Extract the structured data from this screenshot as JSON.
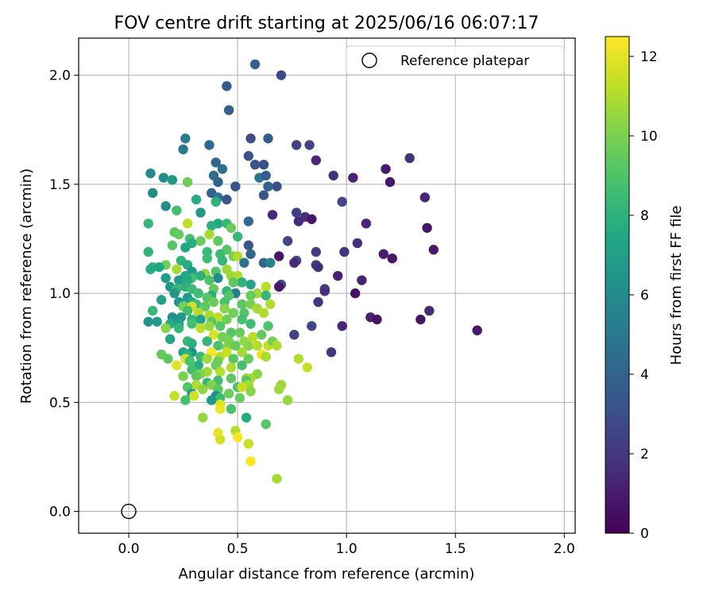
{
  "chart_data": {
    "type": "scatter",
    "title": "FOV centre drift starting at 2025/06/16 06:07:17",
    "xlabel": "Angular distance from reference (arcmin)",
    "ylabel": "Rotation from reference (arcmin)",
    "xlim": [
      -0.23,
      2.05
    ],
    "ylim": [
      -0.1,
      2.17
    ],
    "xticks": [
      "0.0",
      "0.5",
      "1.0",
      "1.5",
      "2.0"
    ],
    "yticks": [
      "0.0",
      "0.5",
      "1.0",
      "1.5",
      "2.0"
    ],
    "grid": true,
    "legend": {
      "location": "upper right",
      "entries": [
        "Reference platepar"
      ]
    },
    "colorbar": {
      "label": "Hours from first FF file",
      "colormap": "viridis",
      "range": [
        0,
        12.5
      ],
      "ticks": [
        "0",
        "2",
        "4",
        "6",
        "8",
        "10",
        "12"
      ]
    },
    "reference_point": {
      "x": 0.0,
      "y": 0.0,
      "label": "Reference platepar",
      "marker": "open-circle",
      "edge_color": "#000000"
    },
    "points": [
      [
        0.58,
        2.05,
        3.7
      ],
      [
        0.7,
        2.0,
        2.8
      ],
      [
        0.45,
        1.95,
        3.5
      ],
      [
        0.46,
        1.84,
        3.8
      ],
      [
        0.56,
        1.71,
        2.9
      ],
      [
        0.64,
        1.71,
        3.6
      ],
      [
        0.26,
        1.71,
        5.2
      ],
      [
        0.37,
        1.68,
        4.2
      ],
      [
        0.77,
        1.68,
        2.4
      ],
      [
        0.83,
        1.68,
        2.5
      ],
      [
        0.25,
        1.66,
        5.0
      ],
      [
        0.55,
        1.63,
        3.2
      ],
      [
        0.86,
        1.61,
        1.5
      ],
      [
        1.29,
        1.62,
        1.8
      ],
      [
        0.4,
        1.6,
        4.1
      ],
      [
        0.58,
        1.59,
        3.3
      ],
      [
        0.62,
        1.59,
        3.0
      ],
      [
        0.43,
        1.57,
        4.5
      ],
      [
        1.18,
        1.57,
        1.0
      ],
      [
        0.1,
        1.55,
        5.8
      ],
      [
        0.39,
        1.54,
        4.4
      ],
      [
        0.6,
        1.53,
        4.9
      ],
      [
        0.63,
        1.54,
        3.6
      ],
      [
        0.94,
        1.54,
        1.7
      ],
      [
        1.03,
        1.53,
        1.2
      ],
      [
        0.16,
        1.53,
        6.1
      ],
      [
        0.2,
        1.52,
        6.8
      ],
      [
        0.27,
        1.51,
        9.7
      ],
      [
        0.41,
        1.51,
        4.0
      ],
      [
        0.49,
        1.49,
        3.3
      ],
      [
        0.68,
        1.49,
        3.0
      ],
      [
        1.2,
        1.51,
        0.8
      ],
      [
        0.64,
        1.49,
        3.9
      ],
      [
        0.11,
        1.46,
        6.0
      ],
      [
        0.38,
        1.46,
        3.9
      ],
      [
        0.62,
        1.45,
        3.4
      ],
      [
        0.41,
        1.44,
        4.9
      ],
      [
        0.45,
        1.43,
        3.3
      ],
      [
        0.31,
        1.43,
        7.6
      ],
      [
        0.4,
        1.42,
        7.9
      ],
      [
        0.98,
        1.42,
        2.6
      ],
      [
        1.36,
        1.44,
        1.3
      ],
      [
        0.17,
        1.4,
        6.1
      ],
      [
        0.22,
        1.38,
        8.7
      ],
      [
        0.33,
        1.37,
        6.6
      ],
      [
        0.66,
        1.36,
        1.5
      ],
      [
        0.77,
        1.37,
        2.4
      ],
      [
        0.81,
        1.35,
        1.7
      ],
      [
        0.84,
        1.34,
        0.8
      ],
      [
        0.55,
        1.33,
        4.3
      ],
      [
        0.09,
        1.32,
        8.2
      ],
      [
        0.41,
        1.32,
        7.5
      ],
      [
        0.45,
        1.32,
        8.3
      ],
      [
        0.38,
        1.31,
        7.9
      ],
      [
        0.78,
        1.33,
        1.5
      ],
      [
        1.09,
        1.32,
        1.3
      ],
      [
        0.27,
        1.32,
        11.3
      ],
      [
        0.47,
        1.3,
        9.6
      ],
      [
        0.37,
        1.27,
        10.8
      ],
      [
        0.21,
        1.28,
        9.3
      ],
      [
        0.23,
        1.27,
        9.5
      ],
      [
        1.37,
        1.3,
        0.7
      ],
      [
        0.5,
        1.26,
        8.4
      ],
      [
        0.28,
        1.25,
        8.9
      ],
      [
        0.33,
        1.24,
        9.6
      ],
      [
        0.41,
        1.24,
        9.4
      ],
      [
        0.73,
        1.24,
        2.6
      ],
      [
        0.29,
        1.23,
        7.8
      ],
      [
        0.55,
        1.22,
        3.4
      ],
      [
        1.05,
        1.23,
        1.8
      ],
      [
        0.2,
        1.22,
        9.2
      ],
      [
        0.26,
        1.21,
        7.5
      ],
      [
        0.45,
        1.2,
        9.1
      ],
      [
        0.86,
        1.19,
        2.2
      ],
      [
        0.99,
        1.19,
        1.9
      ],
      [
        0.09,
        1.19,
        8.1
      ],
      [
        0.36,
        1.19,
        8.4
      ],
      [
        0.42,
        1.18,
        8.6
      ],
      [
        0.56,
        1.18,
        4.0
      ],
      [
        0.48,
        1.17,
        9.9
      ],
      [
        0.5,
        1.17,
        11.0
      ],
      [
        0.36,
        1.16,
        8.6
      ],
      [
        0.43,
        1.15,
        8.2
      ],
      [
        0.69,
        1.17,
        0.7
      ],
      [
        1.17,
        1.18,
        1.0
      ],
      [
        1.21,
        1.16,
        0.8
      ],
      [
        1.4,
        1.2,
        0.9
      ],
      [
        0.24,
        1.15,
        8.1
      ],
      [
        0.53,
        1.14,
        4.6
      ],
      [
        0.62,
        1.14,
        4.0
      ],
      [
        0.65,
        1.14,
        5.6
      ],
      [
        0.77,
        1.15,
        2.8
      ],
      [
        0.76,
        1.14,
        1.5
      ],
      [
        0.27,
        1.13,
        7.6
      ],
      [
        0.86,
        1.13,
        2.0
      ],
      [
        0.87,
        1.12,
        1.6
      ],
      [
        0.17,
        1.13,
        9.8
      ],
      [
        0.45,
        1.11,
        10.6
      ],
      [
        0.4,
        1.1,
        9.1
      ],
      [
        0.29,
        1.1,
        6.7
      ],
      [
        0.22,
        1.11,
        10.8
      ],
      [
        0.11,
        1.12,
        8.2
      ],
      [
        0.14,
        1.12,
        7.4
      ],
      [
        0.1,
        1.11,
        7.6
      ],
      [
        0.35,
        1.09,
        10.5
      ],
      [
        0.47,
        1.08,
        10.6
      ],
      [
        0.5,
        1.08,
        11.0
      ],
      [
        0.29,
        1.07,
        8.8
      ],
      [
        0.33,
        1.08,
        8.0
      ],
      [
        0.41,
        1.07,
        5.8
      ],
      [
        0.26,
        1.08,
        7.5
      ],
      [
        0.96,
        1.08,
        1.1
      ],
      [
        1.07,
        1.06,
        1.2
      ],
      [
        0.17,
        1.07,
        6.9
      ],
      [
        0.23,
        1.06,
        6.8
      ],
      [
        0.27,
        1.06,
        7.6
      ],
      [
        0.37,
        1.06,
        9.0
      ],
      [
        0.52,
        1.05,
        8.0
      ],
      [
        0.48,
        1.05,
        9.4
      ],
      [
        0.7,
        1.04,
        2.9
      ],
      [
        0.56,
        1.04,
        7.2
      ],
      [
        0.63,
        1.03,
        11.1
      ],
      [
        0.26,
        1.03,
        7.9
      ],
      [
        0.19,
        1.03,
        6.7
      ],
      [
        0.22,
        1.02,
        8.2
      ],
      [
        0.29,
        1.02,
        8.5
      ],
      [
        0.39,
        1.02,
        9.5
      ],
      [
        0.45,
        1.01,
        8.1
      ],
      [
        0.69,
        1.03,
        0.8
      ],
      [
        0.9,
        1.02,
        2.4
      ],
      [
        0.9,
        1.01,
        1.7
      ],
      [
        0.21,
        1.0,
        6.6
      ],
      [
        0.59,
        1.0,
        10.7
      ],
      [
        0.49,
        1.0,
        5.3
      ],
      [
        0.32,
        1.0,
        8.6
      ],
      [
        0.38,
        0.99,
        7.8
      ],
      [
        0.46,
        0.99,
        9.1
      ],
      [
        0.36,
        0.98,
        9.2
      ],
      [
        0.27,
        0.98,
        6.8
      ],
      [
        0.56,
        0.99,
        9.6
      ],
      [
        0.63,
        0.99,
        8.3
      ],
      [
        1.04,
        1.0,
        0.6
      ],
      [
        0.15,
        0.97,
        7.1
      ],
      [
        0.23,
        0.96,
        6.4
      ],
      [
        0.29,
        0.96,
        7.6
      ],
      [
        0.31,
        0.95,
        8.5
      ],
      [
        0.39,
        0.96,
        9.7
      ],
      [
        0.44,
        0.96,
        8.9
      ],
      [
        0.52,
        0.95,
        9.3
      ],
      [
        0.56,
        0.95,
        10.0
      ],
      [
        0.65,
        0.95,
        11.0
      ],
      [
        0.87,
        0.96,
        1.9
      ],
      [
        0.25,
        0.94,
        9.9
      ],
      [
        0.29,
        0.94,
        11.6
      ],
      [
        0.35,
        0.94,
        9.4
      ],
      [
        0.44,
        0.93,
        10.3
      ],
      [
        0.59,
        0.93,
        10.8
      ],
      [
        0.11,
        0.92,
        8.4
      ],
      [
        0.27,
        0.92,
        8.7
      ],
      [
        0.32,
        0.91,
        11.1
      ],
      [
        0.37,
        0.9,
        10.9
      ],
      [
        0.41,
        0.89,
        11.2
      ],
      [
        0.48,
        0.91,
        9.8
      ],
      [
        0.53,
        0.91,
        9.1
      ],
      [
        0.62,
        0.91,
        11.0
      ],
      [
        0.2,
        0.89,
        6.2
      ],
      [
        0.24,
        0.89,
        6.8
      ],
      [
        0.29,
        0.88,
        8.1
      ],
      [
        0.33,
        0.88,
        7.3
      ],
      [
        0.38,
        0.87,
        9.3
      ],
      [
        0.45,
        0.88,
        9.8
      ],
      [
        0.52,
        0.88,
        8.8
      ],
      [
        1.38,
        0.92,
        1.6
      ],
      [
        0.09,
        0.87,
        6.3
      ],
      [
        0.13,
        0.87,
        6.8
      ],
      [
        0.19,
        0.86,
        7.7
      ],
      [
        0.23,
        0.86,
        7.3
      ],
      [
        0.29,
        0.86,
        8.7
      ],
      [
        0.37,
        0.85,
        10.5
      ],
      [
        0.42,
        0.85,
        9.1
      ],
      [
        0.56,
        0.86,
        8.6
      ],
      [
        0.64,
        0.85,
        9.0
      ],
      [
        0.84,
        0.85,
        2.6
      ],
      [
        0.98,
        0.85,
        1.3
      ],
      [
        0.17,
        0.84,
        10.2
      ],
      [
        0.23,
        0.84,
        8.2
      ],
      [
        0.33,
        0.84,
        11.2
      ],
      [
        0.47,
        0.82,
        9.2
      ],
      [
        0.51,
        0.82,
        9.6
      ],
      [
        0.39,
        0.81,
        11.8
      ],
      [
        0.43,
        0.8,
        9.9
      ],
      [
        0.57,
        0.8,
        11.2
      ],
      [
        0.61,
        0.81,
        9.5
      ],
      [
        0.76,
        0.81,
        2.4
      ],
      [
        1.11,
        0.89,
        1.1
      ],
      [
        1.14,
        0.88,
        0.7
      ],
      [
        1.34,
        0.88,
        0.7
      ],
      [
        0.19,
        0.79,
        7.3
      ],
      [
        0.27,
        0.78,
        8.3
      ],
      [
        0.36,
        0.78,
        8.2
      ],
      [
        0.46,
        0.78,
        10.0
      ],
      [
        0.53,
        0.78,
        10.5
      ],
      [
        0.29,
        0.77,
        7.9
      ],
      [
        0.41,
        0.76,
        8.9
      ],
      [
        0.49,
        0.76,
        9.5
      ],
      [
        0.55,
        0.76,
        10.3
      ],
      [
        0.59,
        0.76,
        11.1
      ],
      [
        0.64,
        0.76,
        11.3
      ],
      [
        0.66,
        0.78,
        9.9
      ],
      [
        0.68,
        0.76,
        11.0
      ],
      [
        0.45,
        0.75,
        10.1
      ],
      [
        0.25,
        0.73,
        7.4
      ],
      [
        0.29,
        0.73,
        6.3
      ],
      [
        0.38,
        0.73,
        12.4
      ],
      [
        0.45,
        0.73,
        11.5
      ],
      [
        0.52,
        0.73,
        10.8
      ],
      [
        0.61,
        0.72,
        12.2
      ],
      [
        0.15,
        0.72,
        9.5
      ],
      [
        0.27,
        0.72,
        7.8
      ],
      [
        0.33,
        0.71,
        8.5
      ],
      [
        0.42,
        0.71,
        11.2
      ],
      [
        0.63,
        0.71,
        10.9
      ],
      [
        0.78,
        0.7,
        11.0
      ],
      [
        0.93,
        0.73,
        1.9
      ],
      [
        1.6,
        0.83,
        0.8
      ],
      [
        0.18,
        0.7,
        9.3
      ],
      [
        0.26,
        0.7,
        11.7
      ],
      [
        0.36,
        0.7,
        10.6
      ],
      [
        0.48,
        0.7,
        9.2
      ],
      [
        0.55,
        0.7,
        9.6
      ],
      [
        0.28,
        0.69,
        8.9
      ],
      [
        0.41,
        0.69,
        9.7
      ],
      [
        0.22,
        0.67,
        11.9
      ],
      [
        0.32,
        0.67,
        7.8
      ],
      [
        0.4,
        0.67,
        9.6
      ],
      [
        0.52,
        0.67,
        8.8
      ],
      [
        0.82,
        0.66,
        11.4
      ],
      [
        0.47,
        0.66,
        11.0
      ],
      [
        0.29,
        0.65,
        8.7
      ],
      [
        0.36,
        0.64,
        10.7
      ],
      [
        0.42,
        0.64,
        11.1
      ],
      [
        0.33,
        0.63,
        10.2
      ],
      [
        0.59,
        0.63,
        10.3
      ],
      [
        0.25,
        0.62,
        10.0
      ],
      [
        0.31,
        0.62,
        9.4
      ],
      [
        0.47,
        0.61,
        9.4
      ],
      [
        0.54,
        0.61,
        10.5
      ],
      [
        0.56,
        0.61,
        10.8
      ],
      [
        0.41,
        0.6,
        8.7
      ],
      [
        0.54,
        0.6,
        9.2
      ],
      [
        0.36,
        0.59,
        8.2
      ],
      [
        0.31,
        0.58,
        11.0
      ],
      [
        0.38,
        0.58,
        10.1
      ],
      [
        0.55,
        0.58,
        10.7
      ],
      [
        0.7,
        0.58,
        10.6
      ],
      [
        0.27,
        0.57,
        9.1
      ],
      [
        0.5,
        0.57,
        9.0
      ],
      [
        0.52,
        0.57,
        11.4
      ],
      [
        0.69,
        0.56,
        10.7
      ],
      [
        0.34,
        0.56,
        10.4
      ],
      [
        0.41,
        0.56,
        9.3
      ],
      [
        0.56,
        0.55,
        10.3
      ],
      [
        0.46,
        0.54,
        9.7
      ],
      [
        0.29,
        0.54,
        6.7
      ],
      [
        0.21,
        0.53,
        11.4
      ],
      [
        0.3,
        0.53,
        11.6
      ],
      [
        0.4,
        0.53,
        6.2
      ],
      [
        0.42,
        0.52,
        8.6
      ],
      [
        0.51,
        0.52,
        9.6
      ],
      [
        0.26,
        0.51,
        8.8
      ],
      [
        0.38,
        0.51,
        6.8
      ],
      [
        0.73,
        0.51,
        10.5
      ],
      [
        0.42,
        0.49,
        11.9
      ],
      [
        0.47,
        0.47,
        8.9
      ],
      [
        0.42,
        0.47,
        12.2
      ],
      [
        0.54,
        0.43,
        7.7
      ],
      [
        0.34,
        0.43,
        10.5
      ],
      [
        0.63,
        0.4,
        9.2
      ],
      [
        0.49,
        0.37,
        11.1
      ],
      [
        0.41,
        0.36,
        12.1
      ],
      [
        0.5,
        0.34,
        12.4
      ],
      [
        0.42,
        0.33,
        11.7
      ],
      [
        0.55,
        0.31,
        11.4
      ],
      [
        0.56,
        0.23,
        12.4
      ],
      [
        0.68,
        0.15,
        10.8
      ]
    ]
  }
}
